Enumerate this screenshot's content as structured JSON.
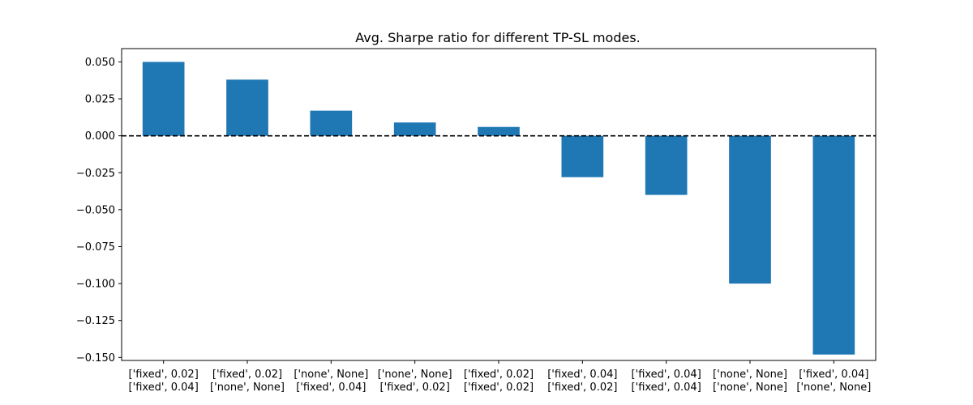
{
  "chart_data": {
    "type": "bar",
    "title": "Avg. Sharpe ratio for different TP-SL modes.",
    "xlabel": "",
    "ylabel": "",
    "categories": [
      [
        "['fixed', 0.02]",
        "['fixed', 0.04]"
      ],
      [
        "['fixed', 0.02]",
        "['none', None]"
      ],
      [
        "['none', None]",
        "['fixed', 0.04]"
      ],
      [
        "['none', None]",
        "['fixed', 0.02]"
      ],
      [
        "['fixed', 0.02]",
        "['fixed', 0.02]"
      ],
      [
        "['fixed', 0.04]",
        "['fixed', 0.02]"
      ],
      [
        "['fixed', 0.04]",
        "['fixed', 0.04]"
      ],
      [
        "['none', None]",
        "['none', None]"
      ],
      [
        "['fixed', 0.04]",
        "['none', None]"
      ]
    ],
    "values": [
      0.05,
      0.038,
      0.017,
      0.009,
      0.006,
      -0.028,
      -0.04,
      -0.1,
      -0.148
    ],
    "ylim": [
      -0.152,
      0.059
    ],
    "yticks": [
      0.05,
      0.025,
      0.0,
      -0.025,
      -0.05,
      -0.075,
      -0.1,
      -0.125,
      -0.15
    ],
    "ytick_labels": [
      "0.050",
      "0.025",
      "0.000",
      "−0.025",
      "−0.050",
      "−0.075",
      "−0.100",
      "−0.125",
      "−0.150"
    ],
    "reference_line": {
      "y": 0,
      "style": "dashed",
      "color": "#000000"
    },
    "bar_color": "#1f77b4",
    "grid": false,
    "legend": "none"
  }
}
